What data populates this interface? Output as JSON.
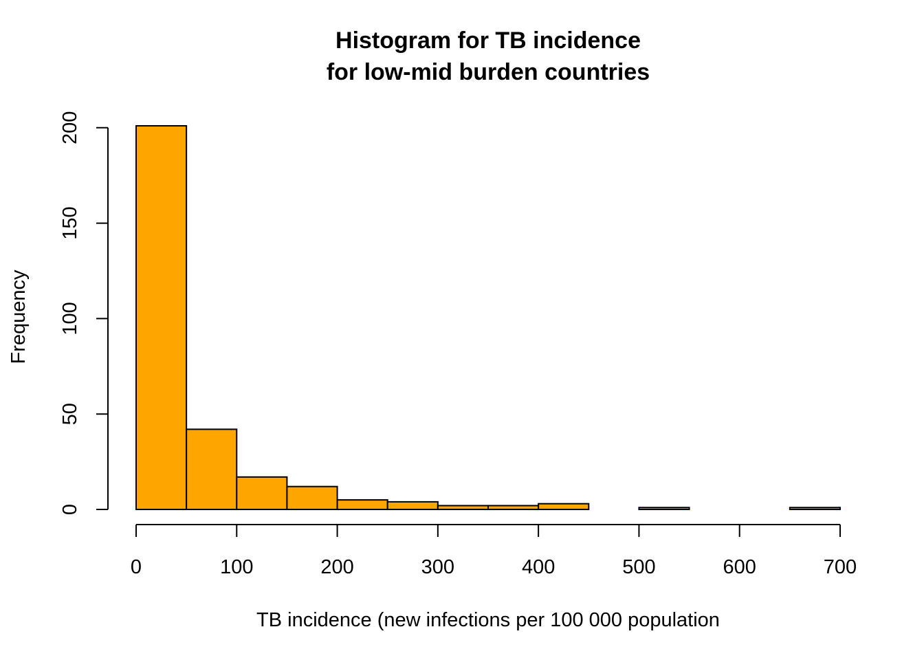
{
  "chart_data": {
    "type": "bar",
    "title_lines": [
      "Histogram for TB incidence",
      "for low-mid burden countries"
    ],
    "xlabel": "TB incidence (new infections per 100 000 population",
    "ylabel": "Frequency",
    "bin_width": 50,
    "bins": [
      {
        "from": 0,
        "to": 50,
        "count": 201
      },
      {
        "from": 50,
        "to": 100,
        "count": 42
      },
      {
        "from": 100,
        "to": 150,
        "count": 17
      },
      {
        "from": 150,
        "to": 200,
        "count": 12
      },
      {
        "from": 200,
        "to": 250,
        "count": 5
      },
      {
        "from": 250,
        "to": 300,
        "count": 4
      },
      {
        "from": 300,
        "to": 350,
        "count": 2
      },
      {
        "from": 350,
        "to": 400,
        "count": 2
      },
      {
        "from": 400,
        "to": 450,
        "count": 3
      },
      {
        "from": 450,
        "to": 500,
        "count": 0
      },
      {
        "from": 500,
        "to": 550,
        "count": 1
      },
      {
        "from": 550,
        "to": 600,
        "count": 0
      },
      {
        "from": 600,
        "to": 650,
        "count": 0
      },
      {
        "from": 650,
        "to": 700,
        "count": 1
      }
    ],
    "xlim": [
      0,
      700
    ],
    "ylim": [
      0,
      201
    ],
    "x_ticks": [
      0,
      100,
      200,
      300,
      400,
      500,
      600,
      700
    ],
    "y_ticks": [
      0,
      50,
      100,
      150,
      200
    ],
    "grid": false,
    "legend": "none",
    "bar_color": "#FFA500",
    "border_color": "#000000"
  }
}
